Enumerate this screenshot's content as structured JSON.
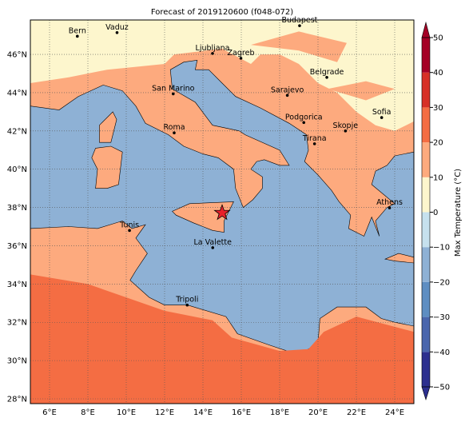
{
  "title": "Forecast of 2019120600 (f048-072)",
  "map": {
    "lon_ticks": [
      {
        "value": 6,
        "label": "6°E"
      },
      {
        "value": 8,
        "label": "8°E"
      },
      {
        "value": 10,
        "label": "10°E"
      },
      {
        "value": 12,
        "label": "12°E"
      },
      {
        "value": 14,
        "label": "14°E"
      },
      {
        "value": 16,
        "label": "16°E"
      },
      {
        "value": 18,
        "label": "18°E"
      },
      {
        "value": 20,
        "label": "20°E"
      },
      {
        "value": 22,
        "label": "22°E"
      },
      {
        "value": 24,
        "label": "24°E"
      }
    ],
    "lat_ticks": [
      {
        "value": 28,
        "label": "28°N"
      },
      {
        "value": 30,
        "label": "30°N"
      },
      {
        "value": 32,
        "label": "32°N"
      },
      {
        "value": 34,
        "label": "34°N"
      },
      {
        "value": 36,
        "label": "36°N"
      },
      {
        "value": 38,
        "label": "38°N"
      },
      {
        "value": 40,
        "label": "40°N"
      },
      {
        "value": 42,
        "label": "42°N"
      },
      {
        "value": 44,
        "label": "44°N"
      },
      {
        "value": 46,
        "label": "46°N"
      }
    ],
    "cities": [
      "Bern",
      "Vaduz",
      "Budapest",
      "Ljubljana",
      "Zagreb",
      "Belgrade",
      "San Marino",
      "Sarajevo",
      "Roma",
      "Podgorica",
      "Skopje",
      "Sofia",
      "Tirana",
      "Athens",
      "Tunis",
      "La Valette",
      "Tripoli"
    ]
  },
  "colorbar": {
    "label": "Max Temperature (°C)",
    "ticks": [
      {
        "value": -50,
        "label": "−50"
      },
      {
        "value": -40,
        "label": "−40"
      },
      {
        "value": -30,
        "label": "−30"
      },
      {
        "value": -20,
        "label": "−20"
      },
      {
        "value": -10,
        "label": "−10"
      },
      0,
      10,
      20,
      30,
      40,
      50
    ],
    "colors": [
      "#2c2f8f",
      "#4a66ad",
      "#5e8ec2",
      "#8eb1d5",
      "#c6e1ee",
      "#fdf6cd",
      "#fdaa7e",
      "#f46d43",
      "#d73027",
      "#a50026"
    ]
  }
}
